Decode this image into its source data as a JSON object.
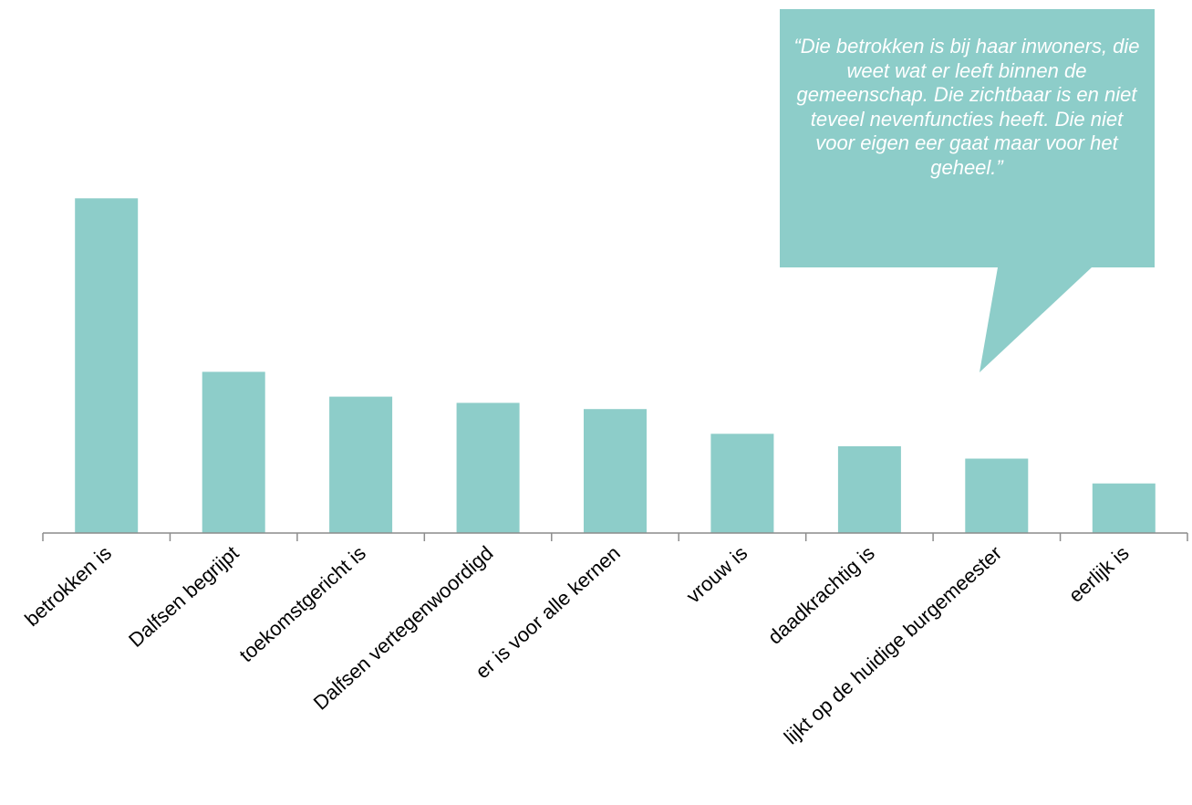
{
  "colors": {
    "bar": "#8dcdc9",
    "axis": "#8c8c8c",
    "callout": "#8dcdc9"
  },
  "callout": {
    "text": "“Die betrokken is bij haar inwoners, die weet wat er leeft binnen de gemeenschap. Die zichtbaar is en niet teveel nevenfuncties heeft. Die niet voor eigen eer gaat maar voor het geheel.”"
  },
  "chart_data": {
    "type": "bar",
    "categories": [
      "betrokken is",
      "Dalfsen begrijpt",
      "toekomstgericht is",
      "Dalfsen vertegenwoordigd",
      "er is voor alle kernen",
      "vrouw is",
      "daadkrachtig is",
      "lijkt op de huidige burgemeester",
      "eerlijk is"
    ],
    "values": [
      27,
      13,
      11,
      10.5,
      10,
      8,
      7,
      6,
      4
    ],
    "ylim": [
      0,
      43
    ],
    "grid": false,
    "legend": "none"
  }
}
